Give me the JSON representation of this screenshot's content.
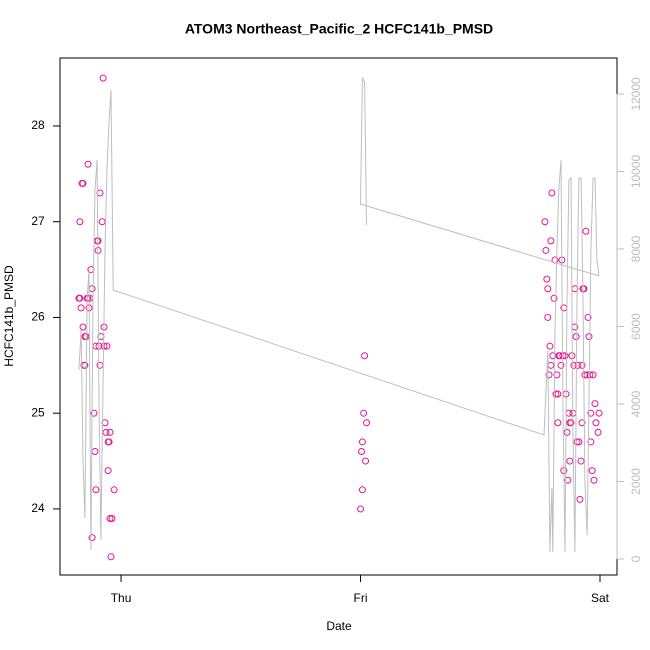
{
  "chart_data": {
    "type": "scatter",
    "title": "ATOM3 Northeast_Pacific_2 HCFC141b_PMSD",
    "xlabel": "Date",
    "ylabel": "HCFC141b_PMSD",
    "xlim": [
      -0.255,
      2.071
    ],
    "xticks": [
      {
        "value": 0,
        "label": "Thu"
      },
      {
        "value": 1,
        "label": "Fri"
      },
      {
        "value": 2,
        "label": "Sat"
      }
    ],
    "ylim": [
      23.31,
      28.71
    ],
    "yticks": [
      24,
      25,
      26,
      27,
      28
    ],
    "y2lim": [
      -413,
      12929
    ],
    "y2ticks": [
      0,
      2000,
      4000,
      6000,
      8000,
      10000,
      12000
    ],
    "y2color": "#bebebe",
    "series": [
      {
        "type": "scatter",
        "color": "#e8168c",
        "x": [
          -0.176,
          -0.172,
          -0.167,
          -0.172,
          -0.163,
          -0.159,
          -0.159,
          -0.155,
          -0.151,
          -0.151,
          -0.146,
          -0.142,
          -0.138,
          -0.134,
          -0.138,
          -0.13,
          -0.126,
          -0.121,
          -0.121,
          -0.113,
          -0.109,
          -0.105,
          -0.105,
          -0.1,
          -0.096,
          -0.096,
          -0.092,
          -0.088,
          -0.084,
          -0.079,
          -0.075,
          -0.071,
          -0.071,
          -0.067,
          -0.063,
          -0.059,
          -0.054,
          -0.05,
          -0.054,
          -0.046,
          -0.046,
          -0.042,
          -0.038,
          -0.029,
          -0.088,
          1.0,
          1.004,
          1.008,
          1.008,
          1.013,
          1.017,
          1.021,
          1.025,
          1.77,
          1.774,
          1.778,
          1.782,
          1.782,
          1.787,
          1.791,
          1.795,
          1.799,
          1.795,
          1.803,
          1.808,
          1.812,
          1.816,
          1.82,
          1.824,
          1.824,
          1.828,
          1.833,
          1.837,
          1.841,
          1.845,
          1.849,
          1.849,
          1.854,
          1.858,
          1.862,
          1.866,
          1.87,
          1.874,
          1.874,
          1.879,
          1.883,
          1.887,
          1.891,
          1.895,
          1.895,
          1.9,
          1.904,
          1.908,
          1.912,
          1.916,
          1.921,
          1.925,
          1.925,
          1.929,
          1.933,
          1.937,
          1.941,
          1.946,
          1.95,
          1.954,
          1.958,
          1.962,
          1.962,
          1.967,
          1.971,
          1.975,
          1.979,
          1.983,
          1.992,
          1.996
        ],
        "values": [
          26.2,
          26.2,
          26.1,
          27.0,
          27.4,
          27.4,
          25.9,
          25.5,
          25.5,
          25.8,
          25.8,
          26.2,
          26.2,
          26.1,
          27.6,
          26.2,
          26.5,
          26.3,
          23.7,
          25.0,
          24.6,
          24.2,
          25.7,
          26.8,
          26.8,
          26.7,
          25.7,
          27.3,
          25.8,
          27.0,
          28.5,
          25.7,
          25.9,
          24.9,
          24.8,
          25.7,
          24.7,
          24.7,
          24.4,
          24.8,
          23.9,
          23.5,
          23.9,
          24.2,
          25.5,
          24.0,
          24.6,
          24.7,
          24.2,
          25.0,
          25.6,
          24.5,
          24.9,
          27.0,
          26.7,
          26.4,
          26.3,
          26.0,
          25.4,
          25.7,
          26.8,
          27.3,
          25.5,
          25.6,
          26.2,
          26.6,
          25.2,
          25.4,
          24.9,
          25.2,
          25.6,
          25.6,
          25.5,
          26.6,
          25.6,
          26.1,
          24.4,
          25.6,
          25.2,
          24.8,
          24.3,
          25.0,
          24.5,
          24.9,
          24.9,
          25.6,
          25.0,
          25.5,
          25.9,
          26.3,
          25.8,
          24.7,
          25.5,
          24.7,
          24.1,
          24.5,
          25.5,
          24.9,
          26.3,
          26.3,
          25.4,
          26.9,
          25.4,
          26.0,
          25.8,
          25.4,
          24.7,
          25.0,
          24.4,
          25.4,
          24.3,
          25.1,
          24.9,
          24.8,
          25.0
        ]
      },
      {
        "type": "line",
        "axis": "y2",
        "color": "#bebebe",
        "x": [
          -0.176,
          -0.167,
          -0.159,
          -0.151,
          -0.142,
          -0.134,
          -0.126,
          -0.117,
          -0.109,
          -0.1,
          -0.092,
          -0.084,
          -0.075,
          -0.067,
          -0.059,
          -0.05,
          -0.042,
          -0.033,
          1.766,
          1.782,
          1.791,
          1.799,
          1.803,
          1.812,
          1.82,
          1.828,
          1.837,
          1.845,
          1.854,
          1.862,
          1.87,
          1.879,
          1.887,
          1.895,
          1.904,
          1.912,
          1.921,
          1.929,
          1.937,
          1.946,
          1.954,
          1.962,
          1.971,
          1.979,
          1.987,
          1.996,
          null,
          1.025,
          1.017,
          1.008,
          1.0,
          1.996
        ],
        "values": [
          4877,
          5910,
          2555,
          1058,
          6684,
          7458,
          232,
          6684,
          9523,
          10297,
          4103,
          490,
          4619,
          7974,
          10039,
          11329,
          12103,
          6942,
          3200,
          5394,
          181,
          1832,
          181,
          5910,
          7974,
          9523,
          10297,
          4103,
          181,
          6684,
          9781,
          9832,
          3329,
          181,
          6684,
          9832,
          9832,
          6684,
          2039,
          619,
          4103,
          7974,
          9832,
          9832,
          7716,
          7303,
          null,
          8619,
          12310,
          12413,
          9161,
          7303
        ]
      }
    ]
  }
}
